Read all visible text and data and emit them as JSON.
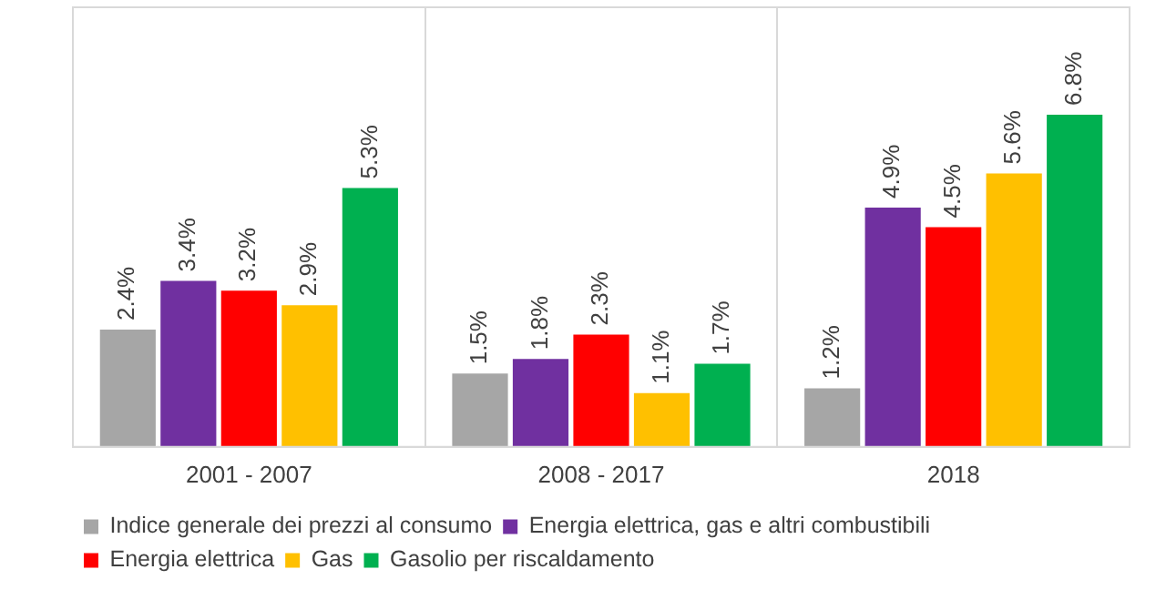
{
  "chart_data": {
    "type": "bar",
    "categories": [
      "2001 - 2007",
      "2008 - 2017",
      "2018"
    ],
    "series": [
      {
        "name": "Indice generale dei prezzi al consumo",
        "color": "#a6a6a6",
        "values": [
          2.4,
          1.5,
          1.2
        ],
        "value_labels": [
          "2.4%",
          "1.5%",
          "1.2%"
        ]
      },
      {
        "name": "Energia elettrica, gas e altri combustibili",
        "color": "#7030a0",
        "values": [
          3.4,
          1.8,
          4.9
        ],
        "value_labels": [
          "3.4%",
          "1.8%",
          "4.9%"
        ]
      },
      {
        "name": "Energia elettrica",
        "color": "#ff0000",
        "values": [
          3.2,
          2.3,
          4.5
        ],
        "value_labels": [
          "3.2%",
          "2.3%",
          "4.5%"
        ]
      },
      {
        "name": "Gas",
        "color": "#ffc000",
        "values": [
          2.9,
          1.1,
          5.6
        ],
        "value_labels": [
          "2.9%",
          "1.1%",
          "5.6%"
        ]
      },
      {
        "name": "Gasolio per riscaldamento",
        "color": "#00b050",
        "values": [
          5.3,
          1.7,
          6.8
        ],
        "value_labels": [
          "5.3%",
          "1.7%",
          "6.8%"
        ]
      }
    ],
    "grid": "x",
    "legend": "bottom",
    "tick_labels": "x"
  }
}
